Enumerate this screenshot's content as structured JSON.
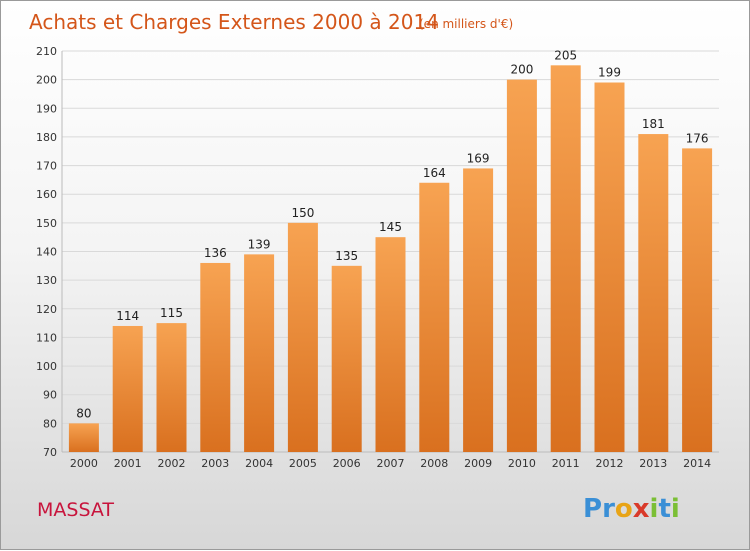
{
  "chart_data": {
    "type": "bar",
    "title": "Achats et Charges Externes 2000 à 2014",
    "subtitle": "(en milliers d'€)",
    "categories": [
      "2000",
      "2001",
      "2002",
      "2003",
      "2004",
      "2005",
      "2006",
      "2007",
      "2008",
      "2009",
      "2010",
      "2011",
      "2012",
      "2013",
      "2014"
    ],
    "values": [
      80,
      114,
      115,
      136,
      139,
      150,
      135,
      145,
      164,
      169,
      200,
      205,
      199,
      181,
      176
    ],
    "ylim": [
      70,
      210
    ],
    "yticks": [
      70,
      80,
      90,
      100,
      110,
      120,
      130,
      140,
      150,
      160,
      170,
      180,
      190,
      200,
      210
    ],
    "grid": true,
    "bar_color": "#f0913d",
    "xlabel": "",
    "ylabel": ""
  },
  "place_name": "MASSAT",
  "logo": {
    "letters": [
      "P",
      "r",
      "o",
      "x",
      "i",
      "t",
      "i"
    ],
    "colors": [
      "#3a8fd6",
      "#3a8fd6",
      "#e8a416",
      "#d93a2a",
      "#7bbf35",
      "#3a8fd6",
      "#7bbf35"
    ]
  }
}
